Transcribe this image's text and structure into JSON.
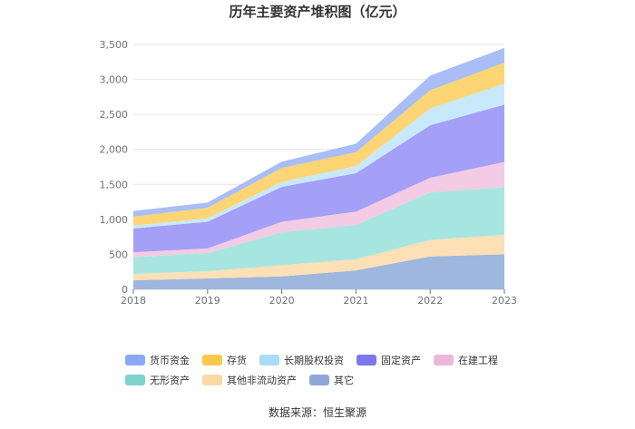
{
  "chart_data": {
    "type": "area",
    "stacked": true,
    "title": "历年主要资产堆积图（亿元）",
    "x": [
      "2018",
      "2019",
      "2020",
      "2021",
      "2022",
      "2023"
    ],
    "ylim": [
      0,
      3500
    ],
    "yticks": [
      "0",
      "500",
      "1,000",
      "1,500",
      "2,000",
      "2,500",
      "3,000",
      "3,500"
    ],
    "ytick_values": [
      0,
      500,
      1000,
      1500,
      2000,
      2500,
      3000,
      3500
    ],
    "grid": true,
    "legend_position": "bottom",
    "series": [
      {
        "name": "其它",
        "color": "#9fb6de",
        "values": [
          130,
          155,
          185,
          270,
          470,
          500
        ]
      },
      {
        "name": "其他非流动资产",
        "color": "#fde0b6",
        "values": [
          90,
          105,
          160,
          160,
          235,
          280
        ]
      },
      {
        "name": "无形资产",
        "color": "#a7e6e0",
        "values": [
          240,
          260,
          470,
          490,
          680,
          680
        ]
      },
      {
        "name": "在建工程",
        "color": "#f3cbe4",
        "values": [
          70,
          65,
          150,
          190,
          210,
          360
        ]
      },
      {
        "name": "固定资产",
        "color": "#a49ff7",
        "values": [
          340,
          380,
          500,
          550,
          750,
          820
        ]
      },
      {
        "name": "长期股权投资",
        "color": "#c8e9fb",
        "values": [
          40,
          50,
          70,
          100,
          240,
          300
        ]
      },
      {
        "name": "存货",
        "color": "#fdd575",
        "values": [
          130,
          150,
          200,
          200,
          260,
          300
        ]
      },
      {
        "name": "货币资金",
        "color": "#a9bdf6",
        "values": [
          80,
          75,
          90,
          120,
          210,
          210
        ]
      }
    ]
  },
  "legend": [
    {
      "label": "货币资金",
      "color": "#8aa9f5"
    },
    {
      "label": "存货",
      "color": "#fbc84e"
    },
    {
      "label": "长期股权投资",
      "color": "#a9dcf9"
    },
    {
      "label": "固定资产",
      "color": "#7b78ee"
    },
    {
      "label": "在建工程",
      "color": "#ebb8db"
    },
    {
      "label": "无形资产",
      "color": "#7ed3cd"
    },
    {
      "label": "其他非流动资产",
      "color": "#fcd8a4"
    },
    {
      "label": "其它",
      "color": "#8ea9d9"
    }
  ],
  "source": "数据来源：恒生聚源"
}
